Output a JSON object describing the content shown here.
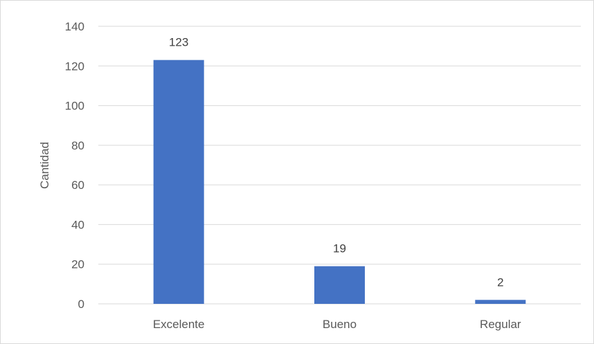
{
  "chart_data": {
    "type": "bar",
    "categories": [
      "Excelente",
      "Bueno",
      "Regular"
    ],
    "values": [
      123,
      19,
      2
    ],
    "data_labels": [
      "123",
      "19",
      "2"
    ],
    "title": "",
    "xlabel": "",
    "ylabel": "Cantidad",
    "ylim": [
      0,
      140
    ],
    "yticks": [
      0,
      20,
      40,
      60,
      80,
      100,
      120,
      140
    ],
    "grid": true,
    "legend": "none",
    "colors": {
      "bar": "#4472C4",
      "grid": "#d9d9d9",
      "text": "#595959"
    }
  }
}
